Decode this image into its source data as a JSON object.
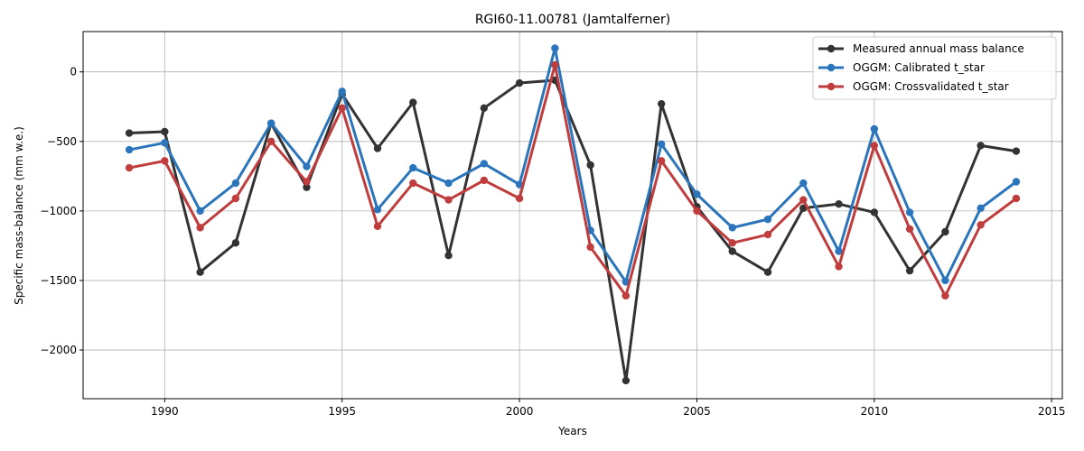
{
  "chart_data": {
    "type": "line",
    "title": "RGI60-11.00781 (Jamtalferner)",
    "xlabel": "Years",
    "ylabel": "Specific mass-balance (mm w.e.)",
    "xlim": [
      1987.7,
      2015.3
    ],
    "ylim": [
      -2350,
      290
    ],
    "xticks": [
      1990,
      1995,
      2000,
      2005,
      2010,
      2015
    ],
    "yticks": [
      -2000,
      -1500,
      -1000,
      -500,
      0
    ],
    "grid": true,
    "legend_position": "top-right",
    "x": [
      1989,
      1990,
      1991,
      1992,
      1993,
      1994,
      1995,
      1996,
      1997,
      1998,
      1999,
      2000,
      2001,
      2002,
      2003,
      2004,
      2005,
      2006,
      2007,
      2008,
      2009,
      2010,
      2011,
      2012,
      2013,
      2014
    ],
    "series": [
      {
        "name": "Measured annual mass balance",
        "color": "#333333",
        "values": [
          -440,
          -430,
          -1440,
          -1230,
          -370,
          -830,
          -160,
          -550,
          -220,
          -1320,
          -260,
          -80,
          -60,
          -670,
          -2220,
          -230,
          -970,
          -1290,
          -1440,
          -980,
          -950,
          -1010,
          -1430,
          -1150,
          -530,
          -570
        ]
      },
      {
        "name": "OGGM: Calibrated t_star",
        "color": "#2a75bb",
        "values": [
          -560,
          -510,
          -1000,
          -800,
          -370,
          -680,
          -140,
          -990,
          -690,
          -800,
          -660,
          -810,
          170,
          -1140,
          -1510,
          -520,
          -880,
          -1120,
          -1060,
          -800,
          -1290,
          -410,
          -1010,
          -1500,
          -980,
          -790
        ]
      },
      {
        "name": "OGGM: Crossvalidated t_star",
        "color": "#c03d3e",
        "values": [
          -690,
          -640,
          -1120,
          -910,
          -500,
          -790,
          -260,
          -1110,
          -800,
          -920,
          -780,
          -910,
          50,
          -1260,
          -1610,
          -640,
          -1000,
          -1230,
          -1170,
          -920,
          -1400,
          -530,
          -1130,
          -1610,
          -1100,
          -910
        ]
      }
    ]
  }
}
